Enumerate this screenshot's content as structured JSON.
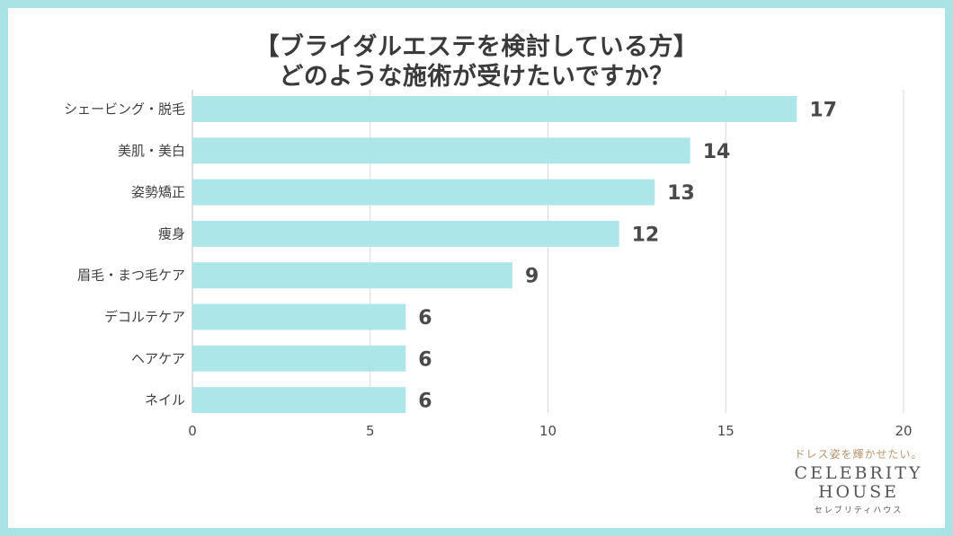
{
  "title": {
    "line1": "【ブライダルエステを検討している方】",
    "line2": "どのような施術が受けたいですか？"
  },
  "colors": {
    "bar": "#ade6e8",
    "frame": "#a9e3e5",
    "grid": "#d9d9d9"
  },
  "chart_data": {
    "type": "bar",
    "orientation": "horizontal",
    "title": "【ブライダルエステを検討している方】どのような施術が受けたいですか？",
    "categories": [
      "シェービング・脱毛",
      "美肌・美白",
      "姿勢矯正",
      "痩身",
      "眉毛・まつ毛ケア",
      "デコルテケア",
      "ヘアケア",
      "ネイル"
    ],
    "values": [
      17,
      14,
      13,
      12,
      9,
      6,
      6,
      6
    ],
    "xlim": [
      0,
      20
    ],
    "xticks": [
      0,
      5,
      10,
      15,
      20
    ],
    "grid": true,
    "xlabel": "",
    "ylabel": ""
  },
  "brand": {
    "tagline": "ドレス姿を輝かせたい。",
    "name_line1": "CELEBRITY",
    "name_line2": "HOUSE",
    "sub": "セレブリティハウス"
  }
}
